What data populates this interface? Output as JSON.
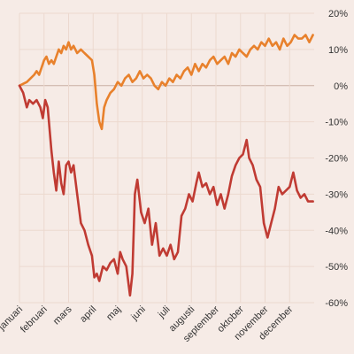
{
  "chart_data": {
    "type": "line",
    "title": "",
    "xlabel": "",
    "ylabel": "",
    "x_labels": [
      "januari",
      "februari",
      "mars",
      "april",
      "maj",
      "juni",
      "juli",
      "augusti",
      "september",
      "oktober",
      "november",
      "december"
    ],
    "y_ticks": [
      20,
      10,
      0,
      -10,
      -20,
      -30,
      -40,
      -50,
      -60
    ],
    "y_tick_labels": [
      "20%",
      "10%",
      "0%",
      "-10%",
      "-20%",
      "-30%",
      "-40%",
      "-50%",
      "-60%"
    ],
    "ylim": [
      -60,
      20
    ],
    "xlim": [
      0,
      12
    ],
    "grid": true,
    "legend": "none",
    "series": [
      {
        "color": "#e8812c",
        "points": [
          [
            0.0,
            0
          ],
          [
            0.15,
            0.5
          ],
          [
            0.3,
            1
          ],
          [
            0.45,
            2
          ],
          [
            0.6,
            3
          ],
          [
            0.7,
            4
          ],
          [
            0.8,
            3
          ],
          [
            0.9,
            5
          ],
          [
            1.0,
            7
          ],
          [
            1.1,
            8
          ],
          [
            1.2,
            6
          ],
          [
            1.3,
            7
          ],
          [
            1.4,
            6
          ],
          [
            1.5,
            8
          ],
          [
            1.6,
            10
          ],
          [
            1.7,
            9
          ],
          [
            1.8,
            11
          ],
          [
            1.9,
            10
          ],
          [
            2.0,
            12
          ],
          [
            2.1,
            10
          ],
          [
            2.2,
            11
          ],
          [
            2.35,
            9
          ],
          [
            2.5,
            10
          ],
          [
            2.65,
            9
          ],
          [
            2.8,
            8
          ],
          [
            2.95,
            7
          ],
          [
            3.05,
            3
          ],
          [
            3.15,
            -5
          ],
          [
            3.25,
            -10
          ],
          [
            3.35,
            -12
          ],
          [
            3.45,
            -6
          ],
          [
            3.55,
            -4
          ],
          [
            3.7,
            -2
          ],
          [
            3.85,
            -1
          ],
          [
            4.0,
            1
          ],
          [
            4.15,
            0
          ],
          [
            4.3,
            2
          ],
          [
            4.45,
            3
          ],
          [
            4.6,
            1
          ],
          [
            4.75,
            2
          ],
          [
            4.9,
            4
          ],
          [
            5.05,
            2
          ],
          [
            5.2,
            3
          ],
          [
            5.35,
            2
          ],
          [
            5.5,
            0
          ],
          [
            5.65,
            -1
          ],
          [
            5.8,
            1
          ],
          [
            5.95,
            0
          ],
          [
            6.1,
            2
          ],
          [
            6.25,
            1
          ],
          [
            6.4,
            3
          ],
          [
            6.55,
            2
          ],
          [
            6.7,
            4
          ],
          [
            6.85,
            5
          ],
          [
            7.0,
            3
          ],
          [
            7.15,
            6
          ],
          [
            7.3,
            4
          ],
          [
            7.45,
            6
          ],
          [
            7.6,
            5
          ],
          [
            7.75,
            7
          ],
          [
            7.9,
            8
          ],
          [
            8.05,
            6
          ],
          [
            8.2,
            7
          ],
          [
            8.35,
            8
          ],
          [
            8.5,
            6
          ],
          [
            8.65,
            9
          ],
          [
            8.8,
            8
          ],
          [
            8.95,
            10
          ],
          [
            9.1,
            9
          ],
          [
            9.25,
            8
          ],
          [
            9.4,
            10
          ],
          [
            9.55,
            11
          ],
          [
            9.7,
            10
          ],
          [
            9.85,
            12
          ],
          [
            10.0,
            11
          ],
          [
            10.15,
            13
          ],
          [
            10.3,
            11
          ],
          [
            10.45,
            12
          ],
          [
            10.6,
            10
          ],
          [
            10.75,
            13
          ],
          [
            10.9,
            11
          ],
          [
            11.05,
            12
          ],
          [
            11.2,
            14
          ],
          [
            11.35,
            13
          ],
          [
            11.5,
            13
          ],
          [
            11.65,
            14
          ],
          [
            11.8,
            12
          ],
          [
            11.95,
            14
          ]
        ]
      },
      {
        "color": "#c03b33",
        "points": [
          [
            0.0,
            0
          ],
          [
            0.15,
            -2
          ],
          [
            0.3,
            -6
          ],
          [
            0.4,
            -4
          ],
          [
            0.55,
            -5
          ],
          [
            0.7,
            -4
          ],
          [
            0.85,
            -6
          ],
          [
            0.95,
            -9
          ],
          [
            1.05,
            -4
          ],
          [
            1.15,
            -6
          ],
          [
            1.3,
            -18
          ],
          [
            1.4,
            -24
          ],
          [
            1.5,
            -29
          ],
          [
            1.6,
            -21
          ],
          [
            1.7,
            -27
          ],
          [
            1.8,
            -30
          ],
          [
            1.9,
            -22
          ],
          [
            2.0,
            -21
          ],
          [
            2.1,
            -24
          ],
          [
            2.2,
            -22
          ],
          [
            2.35,
            -30
          ],
          [
            2.5,
            -38
          ],
          [
            2.65,
            -40
          ],
          [
            2.8,
            -44
          ],
          [
            2.95,
            -47
          ],
          [
            3.05,
            -53
          ],
          [
            3.15,
            -52
          ],
          [
            3.25,
            -54
          ],
          [
            3.4,
            -50
          ],
          [
            3.55,
            -51
          ],
          [
            3.7,
            -49
          ],
          [
            3.85,
            -48
          ],
          [
            4.0,
            -52
          ],
          [
            4.1,
            -46
          ],
          [
            4.2,
            -48
          ],
          [
            4.35,
            -50
          ],
          [
            4.5,
            -58
          ],
          [
            4.6,
            -52
          ],
          [
            4.7,
            -30
          ],
          [
            4.8,
            -26
          ],
          [
            4.95,
            -35
          ],
          [
            5.1,
            -38
          ],
          [
            5.25,
            -34
          ],
          [
            5.4,
            -44
          ],
          [
            5.55,
            -38
          ],
          [
            5.7,
            -47
          ],
          [
            5.85,
            -45
          ],
          [
            6.0,
            -47
          ],
          [
            6.15,
            -44
          ],
          [
            6.3,
            -48
          ],
          [
            6.45,
            -46
          ],
          [
            6.6,
            -36
          ],
          [
            6.75,
            -34
          ],
          [
            6.9,
            -30
          ],
          [
            7.05,
            -32
          ],
          [
            7.2,
            -27
          ],
          [
            7.3,
            -24
          ],
          [
            7.45,
            -28
          ],
          [
            7.6,
            -27
          ],
          [
            7.75,
            -30
          ],
          [
            7.9,
            -28
          ],
          [
            8.05,
            -33
          ],
          [
            8.2,
            -30
          ],
          [
            8.35,
            -34
          ],
          [
            8.5,
            -30
          ],
          [
            8.65,
            -25
          ],
          [
            8.8,
            -22
          ],
          [
            8.95,
            -20
          ],
          [
            9.1,
            -19
          ],
          [
            9.25,
            -15
          ],
          [
            9.35,
            -20
          ],
          [
            9.5,
            -22
          ],
          [
            9.65,
            -26
          ],
          [
            9.8,
            -28
          ],
          [
            9.95,
            -38
          ],
          [
            10.1,
            -42
          ],
          [
            10.25,
            -38
          ],
          [
            10.4,
            -34
          ],
          [
            10.55,
            -28
          ],
          [
            10.7,
            -30
          ],
          [
            10.85,
            -29
          ],
          [
            11.0,
            -28
          ],
          [
            11.15,
            -24
          ],
          [
            11.3,
            -29
          ],
          [
            11.45,
            -31
          ],
          [
            11.6,
            -30
          ],
          [
            11.75,
            -32
          ],
          [
            11.95,
            -32
          ]
        ]
      }
    ]
  }
}
